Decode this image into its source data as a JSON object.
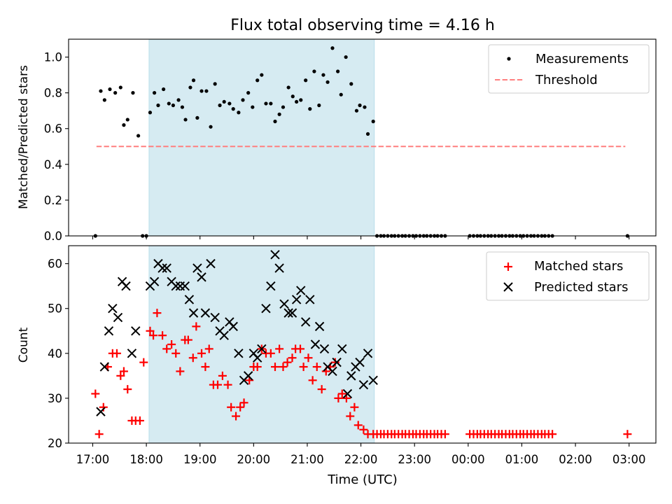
{
  "chart_data": [
    {
      "type": "scatter",
      "title": "Flux total observing time = 4.16 h",
      "ylabel": "Matched/Predicted stars",
      "xlabel": "",
      "xlim_hours": [
        16.55,
        27.5
      ],
      "ylim": [
        0,
        1.1
      ],
      "yticks": [
        0.0,
        0.2,
        0.4,
        0.6,
        0.8,
        1.0
      ],
      "ytick_labels": [
        "0.0",
        "0.2",
        "0.4",
        "0.6",
        "0.8",
        "1.0"
      ],
      "shaded_region_hours": [
        18.05,
        22.25
      ],
      "legend_position": "top-right",
      "legend": [
        {
          "key": "measurements",
          "label": "Measurements"
        },
        {
          "key": "threshold",
          "label": "Threshold"
        }
      ],
      "threshold": {
        "value": 0.5,
        "x_range_hours": [
          17.07,
          26.93
        ],
        "color": "#ff7f7f",
        "style": "dashed"
      },
      "measurements": {
        "color": "#000000",
        "x_hours": [
          17.05,
          17.15,
          17.22,
          17.32,
          17.42,
          17.52,
          17.58,
          17.65,
          17.75,
          17.85,
          17.93,
          18.0,
          18.07,
          18.15,
          18.22,
          18.32,
          18.42,
          18.5,
          18.6,
          18.67,
          18.73,
          18.82,
          18.88,
          18.95,
          19.03,
          19.12,
          19.2,
          19.28,
          19.37,
          19.45,
          19.55,
          19.62,
          19.72,
          19.8,
          19.9,
          19.98,
          20.07,
          20.15,
          20.23,
          20.32,
          20.4,
          20.48,
          20.55,
          20.65,
          20.73,
          20.8,
          20.88,
          20.97,
          21.05,
          21.13,
          21.22,
          21.3,
          21.38,
          21.47,
          21.57,
          21.63,
          21.72,
          21.82,
          21.92,
          21.98,
          22.07,
          22.13,
          22.23,
          22.3,
          22.37,
          22.43,
          22.5,
          22.57,
          22.63,
          22.7,
          22.77,
          22.83,
          22.9,
          22.97,
          23.03,
          23.1,
          23.17,
          23.23,
          23.3,
          23.37,
          23.43,
          23.5,
          23.57,
          24.03,
          24.1,
          24.17,
          24.23,
          24.3,
          24.37,
          24.43,
          24.5,
          24.57,
          24.63,
          24.7,
          24.77,
          24.83,
          24.9,
          24.97,
          25.03,
          25.1,
          25.17,
          25.23,
          25.3,
          25.37,
          25.43,
          25.5,
          25.57,
          26.97
        ],
        "y": [
          0.0,
          0.81,
          0.76,
          0.82,
          0.8,
          0.83,
          0.62,
          0.65,
          0.8,
          0.56,
          0.0,
          0.0,
          0.69,
          0.8,
          0.73,
          0.82,
          0.74,
          0.73,
          0.76,
          0.72,
          0.65,
          0.83,
          0.87,
          0.66,
          0.81,
          0.81,
          0.61,
          0.85,
          0.73,
          0.75,
          0.74,
          0.71,
          0.69,
          0.76,
          0.8,
          0.72,
          0.87,
          0.9,
          0.74,
          0.74,
          0.64,
          0.68,
          0.72,
          0.83,
          0.78,
          0.75,
          0.76,
          0.87,
          0.71,
          0.92,
          0.73,
          0.9,
          0.86,
          1.05,
          0.92,
          0.79,
          1.0,
          0.85,
          0.7,
          0.73,
          0.72,
          0.57,
          0.64,
          0,
          0,
          0,
          0,
          0,
          0,
          0,
          0,
          0,
          0,
          0,
          0,
          0,
          0,
          0,
          0,
          0,
          0,
          0,
          0,
          0,
          0,
          0,
          0,
          0,
          0,
          0,
          0,
          0,
          0,
          0,
          0,
          0,
          0,
          0,
          0,
          0,
          0,
          0,
          0,
          0,
          0,
          0,
          0,
          0
        ]
      }
    },
    {
      "type": "scatter",
      "title": "",
      "ylabel": "Count",
      "xlabel": "Time (UTC)",
      "xlim_hours": [
        16.55,
        27.5
      ],
      "ylim": [
        20,
        64
      ],
      "yticks": [
        20,
        30,
        40,
        50,
        60
      ],
      "ytick_labels": [
        "20",
        "30",
        "40",
        "50",
        "60"
      ],
      "xticks_hours": [
        17,
        18,
        19,
        20,
        21,
        22,
        23,
        24,
        25,
        26,
        27
      ],
      "xtick_labels": [
        "17:00",
        "18:00",
        "19:00",
        "20:00",
        "21:00",
        "22:00",
        "23:00",
        "00:00",
        "01:00",
        "02:00",
        "03:00"
      ],
      "shaded_region_hours": [
        18.05,
        22.25
      ],
      "legend_position": "top-right",
      "legend": [
        {
          "key": "matched",
          "label": "Matched stars"
        },
        {
          "key": "predicted",
          "label": "Predicted stars"
        }
      ],
      "matched": {
        "color": "#ff0000",
        "marker": "plus",
        "x_hours": [
          17.05,
          17.12,
          17.2,
          17.28,
          17.37,
          17.45,
          17.52,
          17.58,
          17.65,
          17.73,
          17.8,
          17.88,
          17.95,
          18.07,
          18.13,
          18.2,
          18.3,
          18.38,
          18.47,
          18.55,
          18.63,
          18.72,
          18.78,
          18.87,
          18.93,
          19.03,
          19.1,
          19.17,
          19.25,
          19.33,
          19.42,
          19.52,
          19.58,
          19.67,
          19.75,
          19.82,
          19.92,
          20.0,
          20.07,
          20.15,
          20.23,
          20.32,
          20.4,
          20.48,
          20.55,
          20.63,
          20.72,
          20.78,
          20.87,
          20.93,
          21.02,
          21.1,
          21.18,
          21.27,
          21.35,
          21.43,
          21.52,
          21.58,
          21.65,
          21.73,
          21.8,
          21.88,
          21.95,
          22.05,
          22.13,
          22.23,
          22.3,
          22.37,
          22.43,
          22.5,
          22.57,
          22.63,
          22.7,
          22.77,
          22.83,
          22.9,
          22.97,
          23.03,
          23.1,
          23.17,
          23.23,
          23.3,
          23.37,
          23.43,
          23.5,
          23.57,
          24.03,
          24.1,
          24.17,
          24.23,
          24.3,
          24.37,
          24.43,
          24.5,
          24.57,
          24.63,
          24.7,
          24.77,
          24.83,
          24.9,
          24.97,
          25.03,
          25.1,
          25.17,
          25.23,
          25.3,
          25.37,
          25.43,
          25.5,
          25.57,
          26.97
        ],
        "y": [
          31,
          22,
          28,
          37,
          40,
          40,
          35,
          36,
          32,
          25,
          25,
          25,
          38,
          45,
          44,
          49,
          44,
          41,
          42,
          40,
          36,
          43,
          43,
          39,
          46,
          40,
          37,
          41,
          33,
          33,
          35,
          33,
          28,
          26,
          28,
          29,
          34,
          37,
          37,
          41,
          40,
          40,
          37,
          41,
          37,
          38,
          39,
          41,
          41,
          37,
          39,
          34,
          37,
          32,
          36,
          37,
          38,
          30,
          31,
          30,
          26,
          28,
          24,
          23,
          22,
          22,
          22,
          22,
          22,
          22,
          22,
          22,
          22,
          22,
          22,
          22,
          22,
          22,
          22,
          22,
          22,
          22,
          22,
          22,
          22,
          22,
          22,
          22,
          22,
          22,
          22,
          22,
          22,
          22,
          22,
          22,
          22,
          22,
          22,
          22,
          22,
          22,
          22,
          22,
          22,
          22,
          22,
          22,
          22,
          22,
          22
        ]
      },
      "predicted": {
        "color": "#000000",
        "marker": "x",
        "x_hours": [
          17.15,
          17.22,
          17.3,
          17.37,
          17.47,
          17.55,
          17.62,
          17.73,
          17.8,
          18.07,
          18.15,
          18.22,
          18.3,
          18.38,
          18.47,
          18.55,
          18.63,
          18.72,
          18.8,
          18.88,
          18.95,
          19.03,
          19.1,
          19.2,
          19.28,
          19.37,
          19.45,
          19.55,
          19.62,
          19.72,
          19.82,
          19.9,
          20.0,
          20.07,
          20.15,
          20.23,
          20.32,
          20.4,
          20.48,
          20.57,
          20.65,
          20.72,
          20.8,
          20.88,
          20.97,
          21.05,
          21.15,
          21.23,
          21.32,
          21.38,
          21.47,
          21.55,
          21.65,
          21.75,
          21.82,
          21.9,
          21.98,
          22.05,
          22.13,
          22.23
        ],
        "y": [
          27,
          37,
          45,
          50,
          48,
          56,
          55,
          40,
          45,
          55,
          56,
          60,
          59,
          59,
          56,
          55,
          55,
          55,
          52,
          49,
          59,
          57,
          49,
          60,
          48,
          45,
          44,
          47,
          46,
          40,
          34,
          35,
          40,
          39,
          41,
          50,
          55,
          62,
          59,
          51,
          49,
          49,
          52,
          54,
          47,
          52,
          42,
          46,
          41,
          37,
          36,
          38,
          41,
          31,
          35,
          37,
          38,
          33,
          40,
          34
        ]
      }
    }
  ]
}
